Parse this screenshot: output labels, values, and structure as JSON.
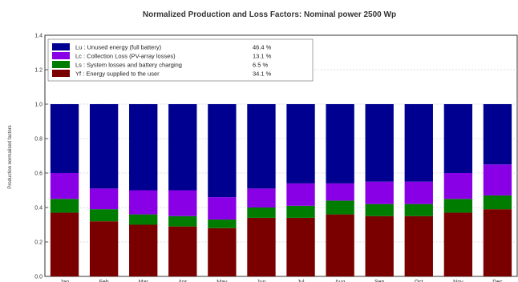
{
  "chart_data": {
    "type": "bar",
    "title": "Normalized Production and Loss Factors:  Nominal power 2500 Wp",
    "ylabel": "Production normalised factors",
    "xlabel": "",
    "ylim": [
      0,
      1.4
    ],
    "yticks": [
      "0.0",
      "0.2",
      "0.4",
      "0.6",
      "0.8",
      "1.0",
      "1.2",
      "1.4"
    ],
    "categories": [
      "Jan",
      "Feb",
      "Mar",
      "Apr",
      "May",
      "Jun",
      "Jul",
      "Aug",
      "Sep",
      "Oct",
      "Nov",
      "Dec"
    ],
    "stacked": true,
    "grid": true,
    "legend_position": "top-left",
    "series": [
      {
        "name": "Yf : Energy supplied to the user",
        "legend_value": "34.1 %",
        "color": "#7a0000",
        "values": [
          0.37,
          0.32,
          0.3,
          0.29,
          0.28,
          0.34,
          0.34,
          0.36,
          0.35,
          0.35,
          0.37,
          0.39
        ]
      },
      {
        "name": "Ls : System losses and battery charging",
        "legend_value": "6.5 %",
        "color": "#007d00",
        "values": [
          0.08,
          0.07,
          0.06,
          0.06,
          0.05,
          0.06,
          0.07,
          0.08,
          0.07,
          0.07,
          0.08,
          0.08
        ]
      },
      {
        "name": "Lc : Collection Loss (PV-array losses)",
        "legend_value": "13.1 %",
        "color": "#8a00e6",
        "values": [
          0.15,
          0.12,
          0.14,
          0.15,
          0.13,
          0.11,
          0.13,
          0.1,
          0.13,
          0.13,
          0.15,
          0.18
        ]
      },
      {
        "name": "Lu : Unused energy (full battery)",
        "legend_value": "46.4 %",
        "color": "#000090",
        "values": [
          0.4,
          0.49,
          0.5,
          0.5,
          0.54,
          0.49,
          0.46,
          0.46,
          0.45,
          0.45,
          0.4,
          0.35
        ]
      }
    ]
  }
}
